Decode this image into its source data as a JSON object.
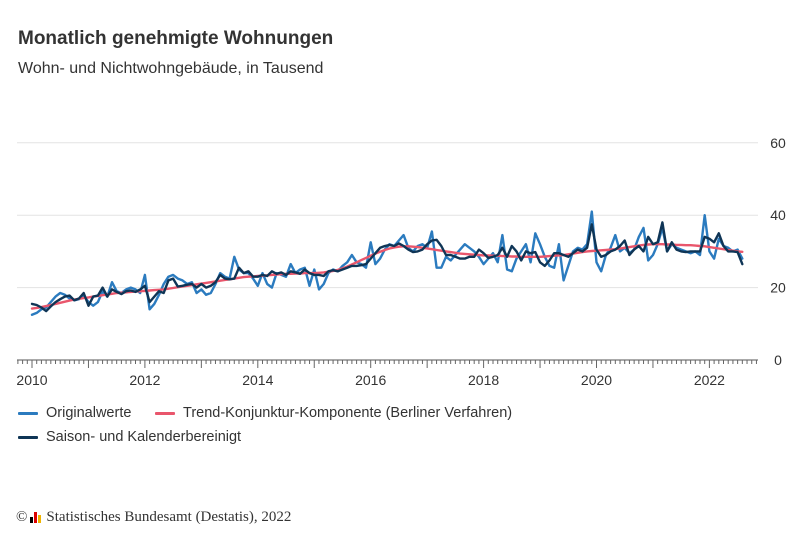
{
  "title": "Monatlich genehmigte Wohnungen",
  "subtitle": "Wohn- und Nichtwohngebäude, in Tausend",
  "source": {
    "copyright": "©",
    "text": "Statistisches Bundesamt (Destatis), 2022"
  },
  "chart_data": {
    "type": "line",
    "title": "Monatlich genehmigte Wohnungen",
    "subtitle": "Wohn- und Nichtwohngebäude, in Tausend",
    "x_start": "2010-01",
    "x_frequency": "monthly",
    "xlim": [
      2010,
      2022.75
    ],
    "ylim": [
      0,
      60
    ],
    "y_ticks": [
      0,
      20,
      40,
      60
    ],
    "x_ticks": [
      "2010",
      "2012",
      "2014",
      "2016",
      "2018",
      "2020",
      "2022"
    ],
    "grid": "horizontal",
    "y_axis_side": "right",
    "legend_position": "bottom",
    "series": [
      {
        "name": "Originalwerte",
        "color": "#2b7bbf",
        "values": [
          12.5,
          13,
          14,
          14.5,
          16,
          17.5,
          18.5,
          18,
          17,
          16.5,
          16.8,
          17.8,
          16,
          15,
          16,
          19,
          17.5,
          21.5,
          19,
          18.5,
          19.5,
          20,
          19.5,
          18.5,
          23.5,
          14,
          15.5,
          18,
          21,
          23,
          23.5,
          22.5,
          22,
          21,
          21.5,
          18.5,
          19.5,
          18,
          18.5,
          21,
          24,
          23,
          22.5,
          28.5,
          25,
          24,
          24,
          22.5,
          20.5,
          24,
          21,
          20,
          24,
          23.5,
          23,
          26.5,
          24,
          25,
          25.5,
          20.5,
          25,
          19.5,
          21,
          24,
          25,
          24.5,
          26,
          27,
          29,
          27,
          26.5,
          25.5,
          32.5,
          26.5,
          28,
          30.5,
          32,
          31.5,
          33,
          34.5,
          31,
          30,
          31.5,
          32,
          31,
          35.5,
          25.5,
          25.5,
          28.5,
          27.5,
          29,
          30.5,
          32,
          31,
          30,
          28.5,
          26.5,
          28,
          29.5,
          27,
          34.5,
          25,
          24.5,
          28,
          30,
          32,
          27,
          35,
          32,
          28.5,
          26,
          25.5,
          32,
          22,
          26,
          30,
          31,
          30.5,
          32,
          41,
          27,
          24.5,
          29,
          31,
          34.5,
          30,
          31,
          29.5,
          30.5,
          34,
          36.5,
          27.5,
          29,
          32,
          36.5,
          30,
          32,
          31,
          30.5,
          30,
          29.5,
          30,
          29,
          40,
          30,
          28,
          33.5,
          31.5,
          31,
          30,
          30.5,
          28
        ]
      },
      {
        "name": "Trend-Konjunktur-Komponente (Berliner Verfahren)",
        "color": "#e9566c",
        "values": [
          14.2,
          14.4,
          14.6,
          14.9,
          15.2,
          15.5,
          15.8,
          16.1,
          16.4,
          16.7,
          16.9,
          17.1,
          17.3,
          17.5,
          17.7,
          17.9,
          18.1,
          18.3,
          18.5,
          18.6,
          18.7,
          18.8,
          18.9,
          19.0,
          19.1,
          19.2,
          19.3,
          19.4,
          19.5,
          19.7,
          19.9,
          20.1,
          20.3,
          20.5,
          20.7,
          20.9,
          21.1,
          21.3,
          21.5,
          21.7,
          21.9,
          22.1,
          22.3,
          22.5,
          22.7,
          22.9,
          23.0,
          23.1,
          23.2,
          23.3,
          23.4,
          23.5,
          23.6,
          23.7,
          23.8,
          23.8,
          23.9,
          23.9,
          24.0,
          24.0,
          24.0,
          24.1,
          24.2,
          24.4,
          24.6,
          24.9,
          25.3,
          25.8,
          26.4,
          27.0,
          27.6,
          28.2,
          28.8,
          29.4,
          29.9,
          30.4,
          30.8,
          31.1,
          31.3,
          31.4,
          31.4,
          31.3,
          31.2,
          31.0,
          30.8,
          30.6,
          30.4,
          30.2,
          30.0,
          29.8,
          29.6,
          29.4,
          29.3,
          29.2,
          29.1,
          29.0,
          28.9,
          28.9,
          28.8,
          28.8,
          28.7,
          28.7,
          28.6,
          28.6,
          28.5,
          28.5,
          28.5,
          28.5,
          28.5,
          28.6,
          28.7,
          28.8,
          28.9,
          29.0,
          29.2,
          29.4,
          29.6,
          29.8,
          30.0,
          30.1,
          30.2,
          30.3,
          30.4,
          30.5,
          30.6,
          30.8,
          31.0,
          31.2,
          31.4,
          31.6,
          31.8,
          31.9,
          32.0,
          32.0,
          32.0,
          31.9,
          31.9,
          31.8,
          31.8,
          31.7,
          31.7,
          31.6,
          31.5,
          31.4,
          31.2,
          31.0,
          30.8,
          30.6,
          30.4,
          30.2,
          30.0,
          29.9
        ]
      },
      {
        "name": "Saison- und Kalenderbereinigt",
        "color": "#0f3556",
        "values": [
          15.5,
          15.2,
          14.5,
          13.5,
          14.8,
          16,
          16.8,
          17.5,
          17.8,
          16.5,
          17,
          18.5,
          15,
          17.5,
          17.8,
          20,
          17.5,
          19.5,
          18.8,
          18.2,
          19,
          19.2,
          18.8,
          19.5,
          20.5,
          16,
          17.5,
          19,
          18.5,
          22,
          22.5,
          20.3,
          20.5,
          20.8,
          21,
          20,
          21,
          20,
          20.5,
          21.5,
          23.5,
          22.5,
          22.3,
          22.5,
          25.5,
          24,
          24.5,
          23,
          23,
          23.5,
          23.2,
          24.5,
          23.8,
          24.2,
          23.5,
          24.5,
          24.2,
          23.8,
          25,
          24,
          23.5,
          23.5,
          23.2,
          24.5,
          24.8,
          24.5,
          25,
          25.5,
          26,
          26,
          26.2,
          26.5,
          28,
          29.5,
          31,
          31.5,
          31.8,
          31.5,
          32.2,
          31.5,
          30.5,
          29.8,
          30,
          30.5,
          32,
          33,
          33.2,
          31.5,
          29,
          29,
          28.5,
          28,
          28,
          28.5,
          28.5,
          30.5,
          29.5,
          28.2,
          28.5,
          29,
          31,
          28.5,
          31.5,
          30,
          27.5,
          30,
          29.5,
          29.8,
          27,
          26,
          27.5,
          29.5,
          29.5,
          29,
          28.5,
          29.5,
          30.5,
          30,
          31,
          37.5,
          30.5,
          28.5,
          29,
          30,
          30.5,
          31.5,
          33,
          29,
          30.5,
          31.5,
          30,
          34,
          32,
          32.5,
          38,
          30,
          32.5,
          30.5,
          30,
          29.8,
          30,
          30,
          30,
          34,
          33.5,
          32.5,
          35,
          31.5,
          30,
          30,
          29.8,
          26.5
        ]
      }
    ]
  }
}
